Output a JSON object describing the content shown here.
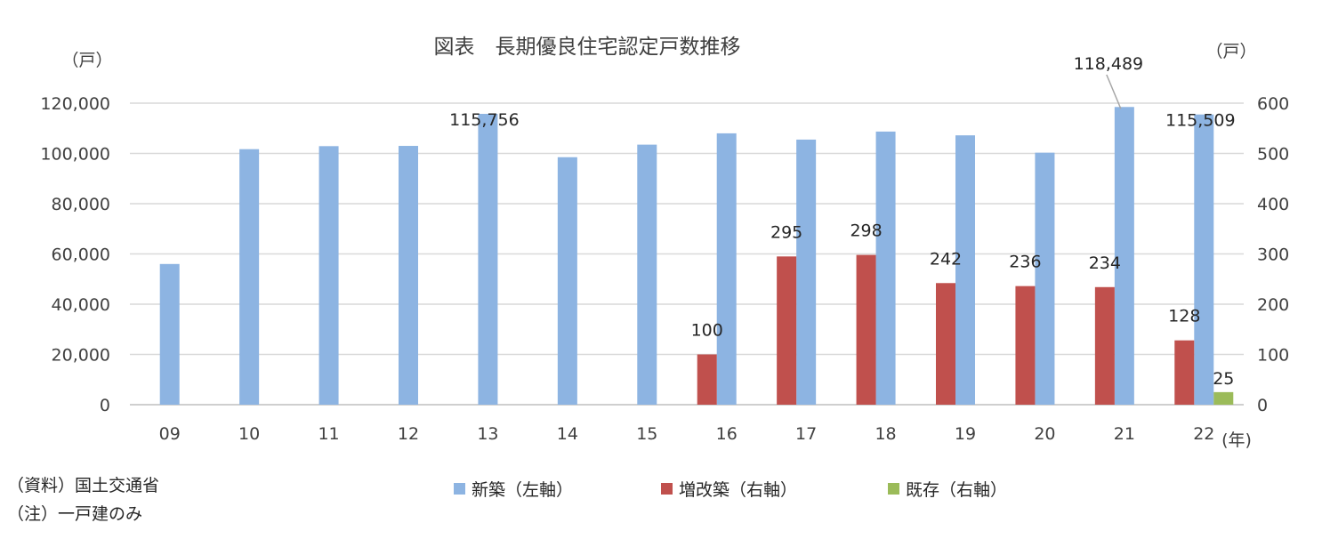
{
  "chart_data": {
    "type": "bar",
    "title": "図表　長期優良住宅認定戸数推移",
    "y_left_unit": "（戸）",
    "y_right_unit": "（戸）",
    "x_unit": "(年)",
    "categories": [
      "09",
      "10",
      "11",
      "12",
      "13",
      "14",
      "15",
      "16",
      "17",
      "18",
      "19",
      "20",
      "21",
      "22"
    ],
    "y_left": {
      "lim": [
        0,
        120000
      ],
      "ticks": [
        0,
        20000,
        40000,
        60000,
        80000,
        100000,
        120000
      ],
      "tick_labels": [
        "0",
        "20,000",
        "40,000",
        "60,000",
        "80,000",
        "100,000",
        "120,000"
      ]
    },
    "y_right": {
      "lim": [
        0,
        600
      ],
      "ticks": [
        0,
        100,
        200,
        300,
        400,
        500,
        600
      ],
      "tick_labels": [
        "0",
        "100",
        "200",
        "300",
        "400",
        "500",
        "600"
      ]
    },
    "grid": true,
    "legend_position": "bottom",
    "series": [
      {
        "name": "新築（左軸）",
        "axis": "left",
        "color": "#8DB4E2",
        "values": [
          56000,
          101700,
          102900,
          103000,
          115756,
          98500,
          103500,
          108000,
          105500,
          108700,
          107200,
          100300,
          118489,
          115509
        ],
        "data_labels": [
          "",
          "",
          "",
          "",
          "115,756",
          "",
          "",
          "",
          "",
          "",
          "",
          "",
          "118,489",
          "115,509"
        ]
      },
      {
        "name": "増改築（右軸）",
        "axis": "right",
        "color": "#C0504D",
        "values": [
          null,
          null,
          null,
          null,
          null,
          null,
          null,
          100,
          295,
          298,
          242,
          236,
          234,
          128
        ],
        "data_labels": [
          "",
          "",
          "",
          "",
          "",
          "",
          "",
          "100",
          "295",
          "298",
          "242",
          "236",
          "234",
          "128"
        ]
      },
      {
        "name": "既存（右軸）",
        "axis": "right",
        "color": "#9BBB59",
        "values": [
          null,
          null,
          null,
          null,
          null,
          null,
          null,
          null,
          null,
          null,
          null,
          null,
          null,
          25
        ],
        "data_labels": [
          "",
          "",
          "",
          "",
          "",
          "",
          "",
          "",
          "",
          "",
          "",
          "",
          "",
          "25"
        ]
      }
    ]
  },
  "notes": {
    "source": "（資料）国土交通省",
    "note": "（注）一戸建のみ"
  }
}
